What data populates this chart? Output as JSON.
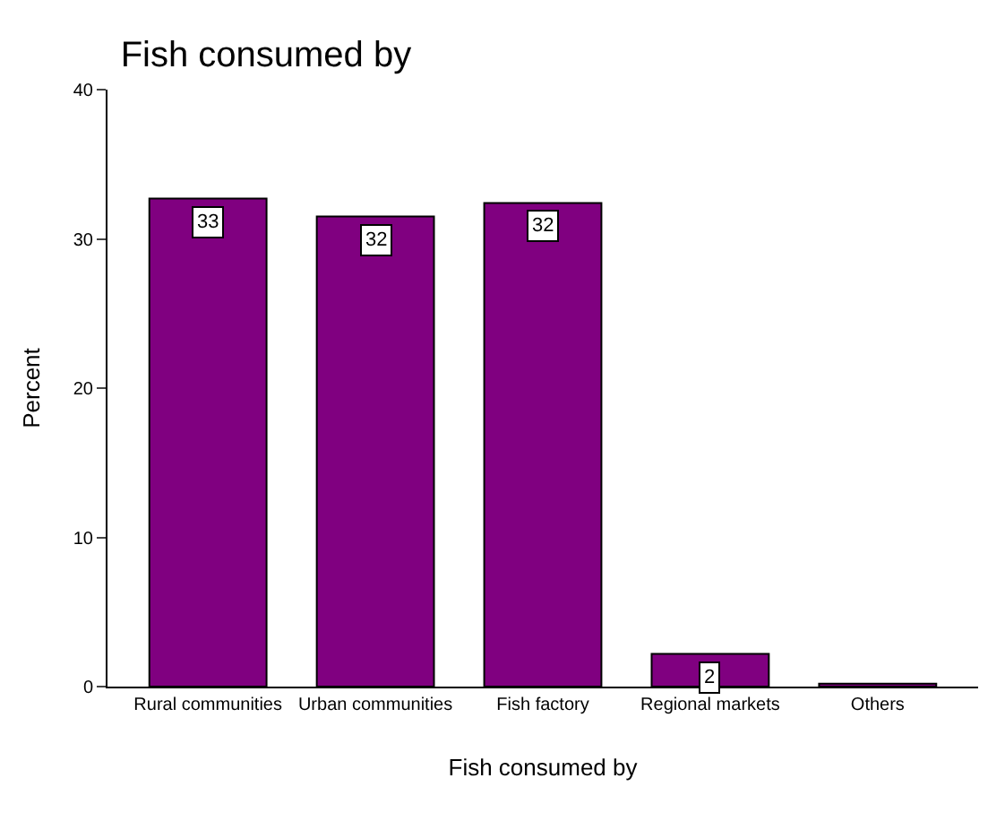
{
  "chart_data": {
    "type": "bar",
    "title": "Fish consumed by",
    "xlabel": "Fish consumed by",
    "ylabel": "Percent",
    "categories": [
      "Rural communities",
      "Urban communities",
      "Fish factory",
      "Regional markets",
      "Others"
    ],
    "values": [
      32.7,
      31.5,
      32.4,
      2.2,
      0.2
    ],
    "value_labels": [
      "33",
      "32",
      "32",
      "2",
      null
    ],
    "color": "#800080",
    "ylim": [
      0,
      40
    ],
    "yticks": [
      0,
      10,
      20,
      30,
      40
    ]
  }
}
